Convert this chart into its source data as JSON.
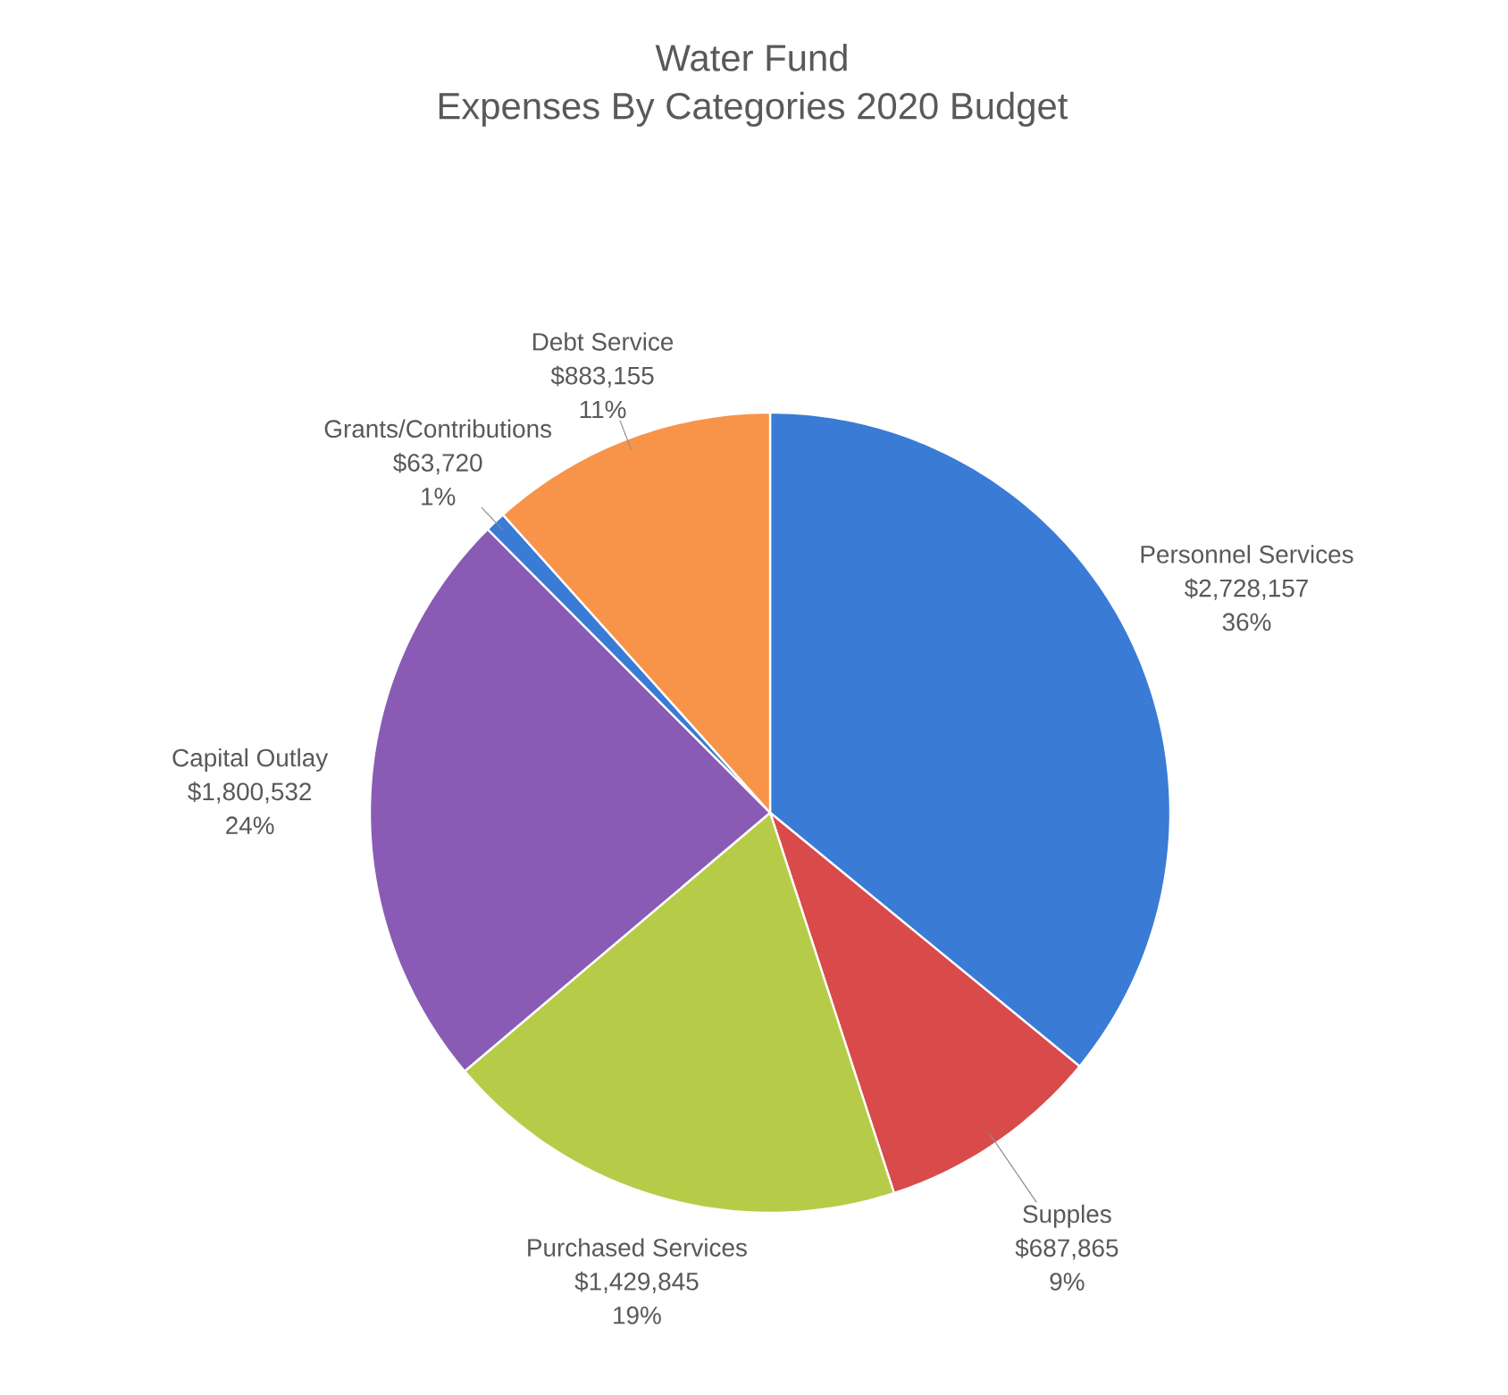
{
  "chart_data": {
    "type": "pie",
    "title": "Water Fund",
    "subtitle": "Expenses By Categories 2020 Budget",
    "categories": [
      "Personnel Services",
      "Supples",
      "Purchased Services",
      "Capital Outlay",
      "Grants/Contributions",
      "Debt Service"
    ],
    "values": [
      2728157,
      687865,
      1429845,
      1800532,
      63720,
      883155
    ],
    "colors": [
      "#3a7bd5",
      "#d94a4a",
      "#b6cc48",
      "#8a5bb5",
      "#3a7bd5",
      "#f7944a"
    ],
    "value_labels": [
      "$2,728,157",
      "$687,865",
      "$1,429,845",
      "$1,800,532",
      "$63,720",
      "$883,155"
    ],
    "annotations": [
      "36%",
      "9%",
      "19%",
      "24%",
      "1%",
      "11%"
    ]
  }
}
